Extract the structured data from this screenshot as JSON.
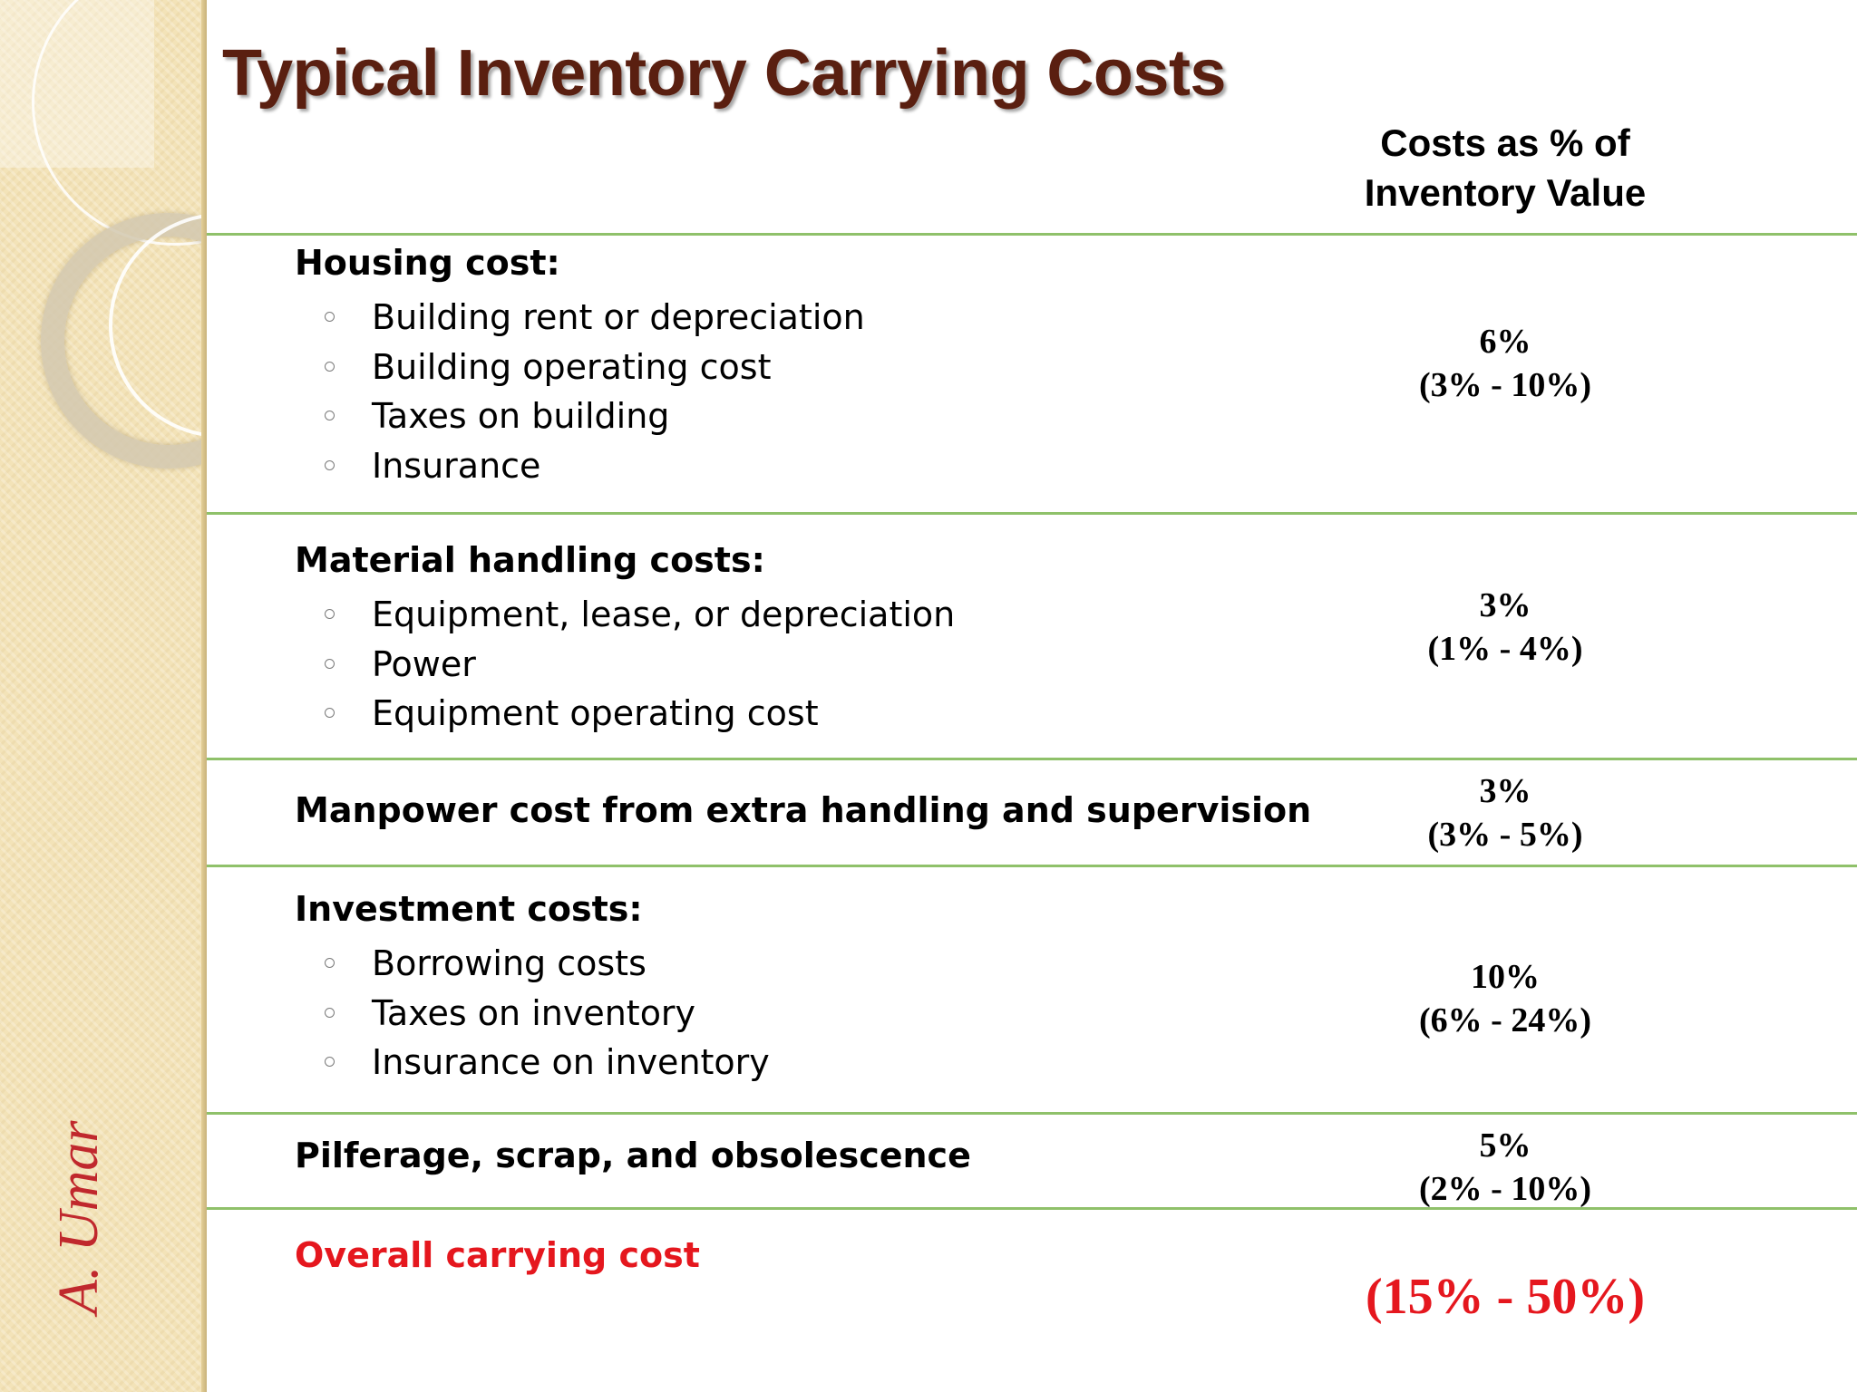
{
  "author": "A. Umar",
  "title": "Typical Inventory Carrying Costs",
  "column_header": [
    "Costs as % of",
    "Inventory Value"
  ],
  "categories": [
    {
      "label": "Housing cost:",
      "items": [
        "Building rent or depreciation",
        "Building operating cost",
        "Taxes on building",
        "Insurance"
      ],
      "percent": "6%",
      "range": "(3% - 10%)"
    },
    {
      "label": "Material handling costs:",
      "items": [
        "Equipment, lease, or depreciation",
        "Power",
        "Equipment operating cost"
      ],
      "percent": "3%",
      "range": "(1% - 4%)"
    },
    {
      "label": "Manpower cost from extra handling and supervision",
      "items": [],
      "percent": "3%",
      "range": "(3% - 5%)"
    },
    {
      "label": "Investment costs:",
      "items": [
        "Borrowing costs",
        "Taxes on inventory",
        "Insurance on inventory"
      ],
      "percent": "10%",
      "range": "(6% - 24%)"
    },
    {
      "label": "Pilferage, scrap, and obsolescence",
      "items": [],
      "percent": "5%",
      "range": "(2% - 10%)"
    }
  ],
  "overall": {
    "label": "Overall carrying cost",
    "range": "(15% - 50%)"
  },
  "colors": {
    "title": "#5a1f10",
    "accent_red": "#e5171e",
    "divider": "#8fc16a",
    "side_strip": "#f3e3b8"
  }
}
